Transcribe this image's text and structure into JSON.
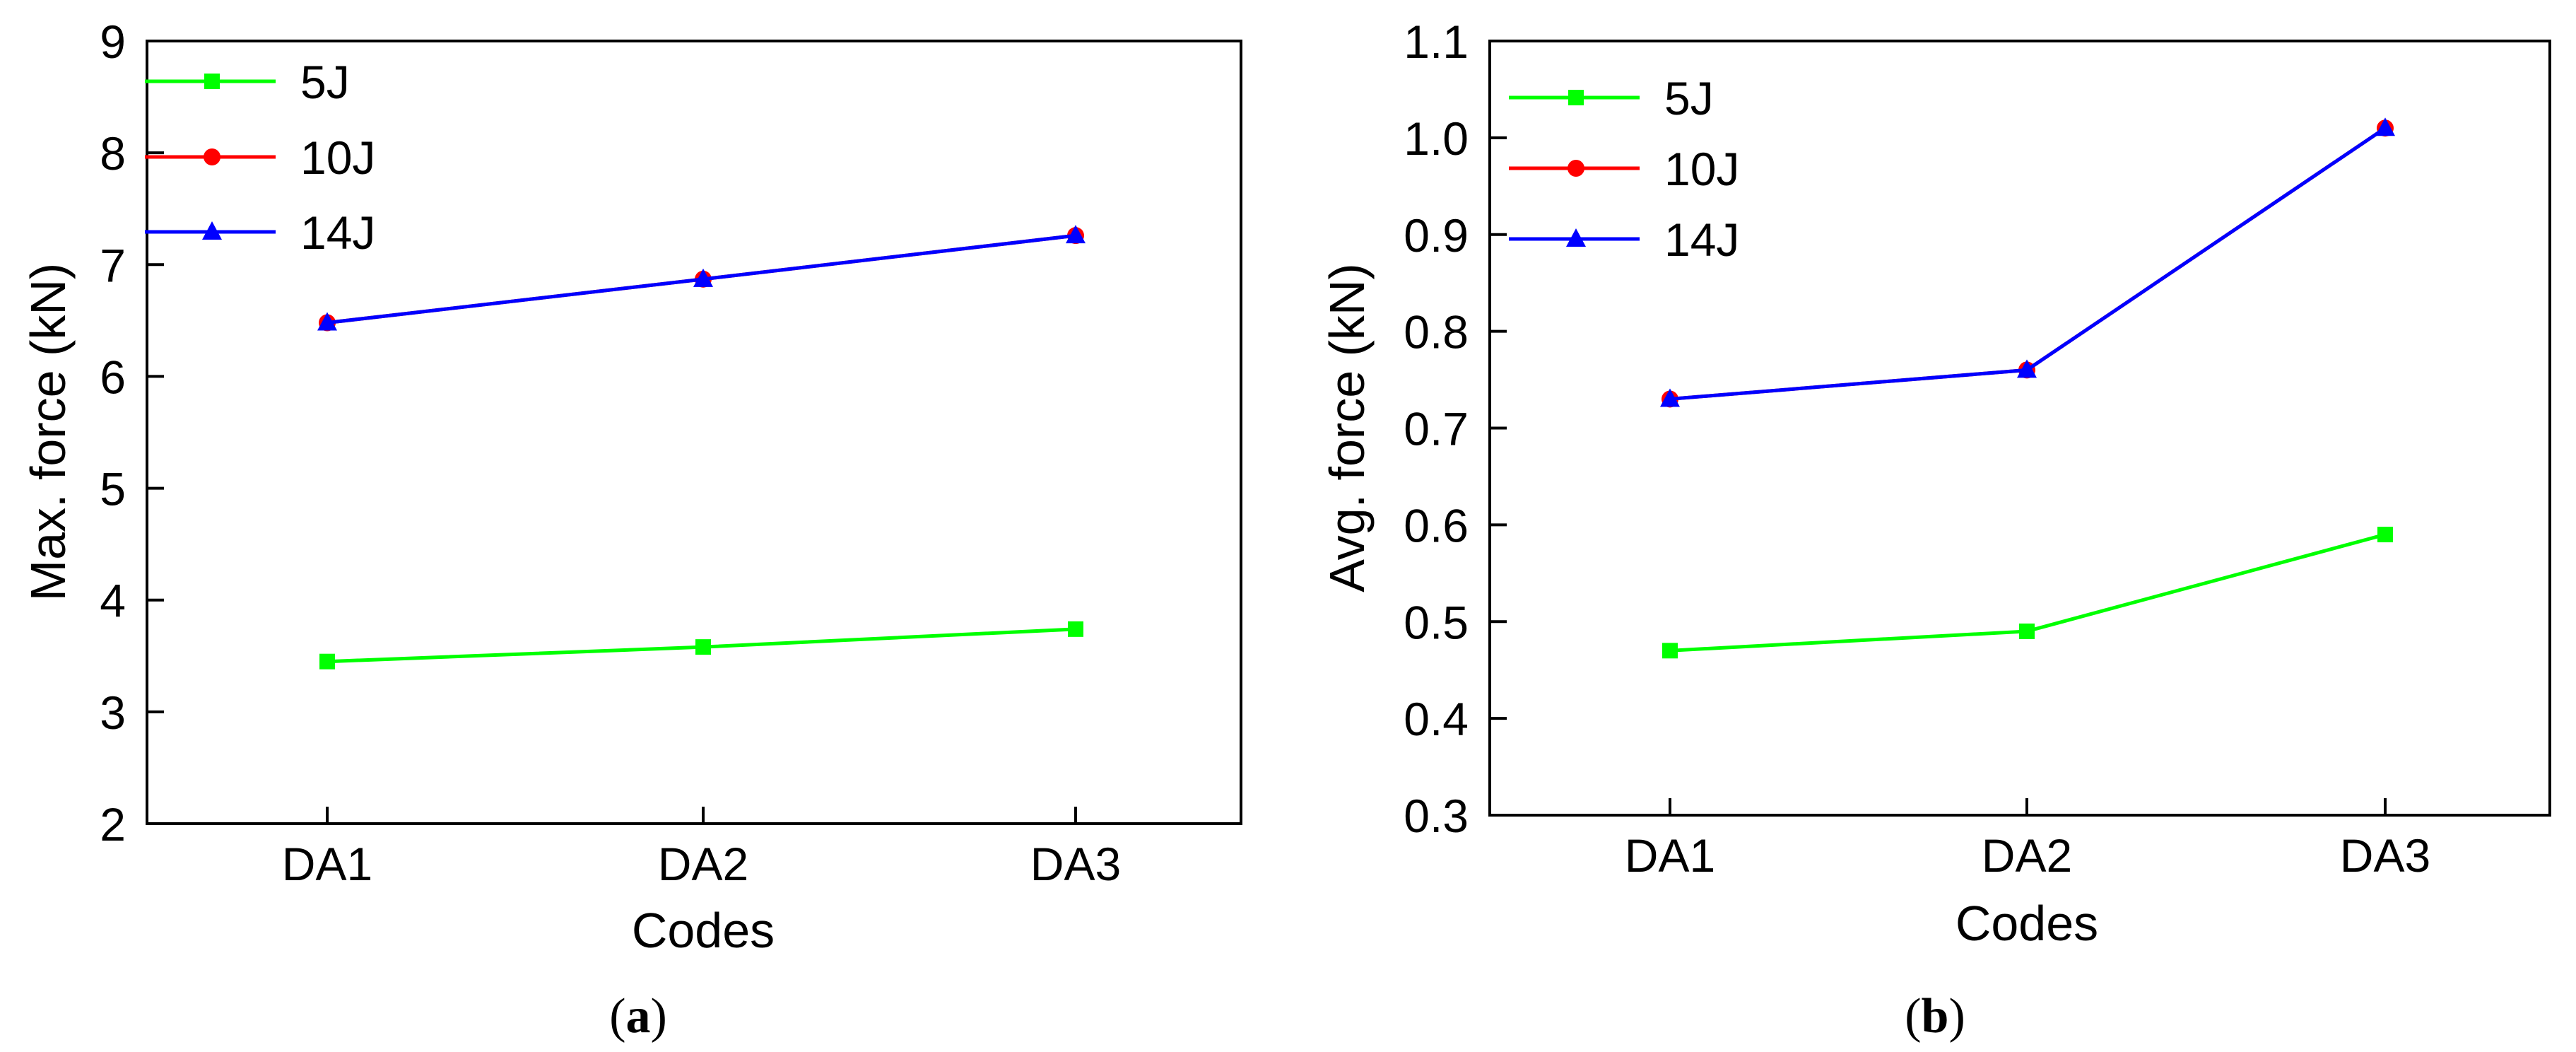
{
  "chart_data": [
    {
      "type": "line",
      "panel_label": "a",
      "caption_open": "(",
      "caption_close": ")",
      "xlabel": "Codes",
      "ylabel": "Max. force (kN)",
      "categories": [
        "DA1",
        "DA2",
        "DA3"
      ],
      "ylim": [
        2,
        9
      ],
      "yticks": [
        2,
        3,
        4,
        5,
        6,
        7,
        8,
        9
      ],
      "ytick_labels": [
        "2",
        "3",
        "4",
        "5",
        "6",
        "7",
        "8",
        "9"
      ],
      "legend_position": "top-left",
      "series": [
        {
          "name": "5J",
          "color": "#00ff00",
          "marker": "square",
          "values": [
            3.45,
            3.58,
            3.74
          ]
        },
        {
          "name": "10J",
          "color": "#ff0000",
          "marker": "circle",
          "values": [
            6.48,
            6.87,
            7.26
          ]
        },
        {
          "name": "14J",
          "color": "#0000ff",
          "marker": "triangle",
          "values": [
            6.48,
            6.87,
            7.26
          ]
        }
      ]
    },
    {
      "type": "line",
      "panel_label": "b",
      "caption_open": "(",
      "caption_close": ")",
      "xlabel": "Codes",
      "ylabel": "Avg. force (kN)",
      "categories": [
        "DA1",
        "DA2",
        "DA3"
      ],
      "ylim": [
        0.3,
        1.1
      ],
      "yticks": [
        0.3,
        0.4,
        0.5,
        0.6,
        0.7,
        0.8,
        0.9,
        1.0,
        1.1
      ],
      "ytick_labels": [
        "0.3",
        "0.4",
        "0.5",
        "0.6",
        "0.7",
        "0.8",
        "0.9",
        "1.0",
        "1.1"
      ],
      "legend_position": "top-left",
      "series": [
        {
          "name": "5J",
          "color": "#00ff00",
          "marker": "square",
          "values": [
            0.47,
            0.49,
            0.59
          ]
        },
        {
          "name": "10J",
          "color": "#ff0000",
          "marker": "circle",
          "values": [
            0.73,
            0.76,
            1.01
          ]
        },
        {
          "name": "14J",
          "color": "#0000ff",
          "marker": "triangle",
          "values": [
            0.73,
            0.76,
            1.01
          ]
        }
      ]
    }
  ]
}
